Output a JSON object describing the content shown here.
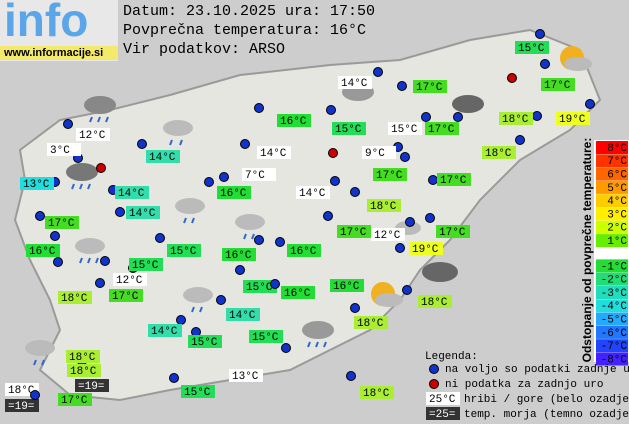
{
  "header": {
    "logo": "info",
    "site": "www.informacije.si",
    "date": "Datum: 23.10.2025 ura: 17:50",
    "average": "Povprečna temperatura: 16°C",
    "source": "Vir podatkov: ARSO"
  },
  "stations": [
    {
      "label": "15°C",
      "color": "#22dd55"
    },
    {
      "label": "17°C",
      "color": "#44dd22"
    },
    {
      "label": "17°C",
      "color": "#44dd22"
    },
    {
      "label": "14°C",
      "color": "#ffffff"
    },
    {
      "label": "15°C",
      "color": "#22dd55"
    },
    {
      "label": "16°C",
      "color": "#22dd33"
    },
    {
      "label": "15°C",
      "color": "#ffffff"
    },
    {
      "label": "17°C",
      "color": "#44dd22"
    },
    {
      "label": "18°C",
      "color": "#aaee33"
    },
    {
      "label": "19°C",
      "color": "#eeff22"
    },
    {
      "label": "12°C",
      "color": "#ffffff"
    },
    {
      "label": "3°C",
      "color": "#ffffff"
    },
    {
      "label": "14°C",
      "color": "#33ddaa"
    },
    {
      "label": "14°C",
      "color": "#ffffff"
    },
    {
      "label": "9°C",
      "color": "#ffffff"
    },
    {
      "label": "18°C",
      "color": "#aaee33"
    },
    {
      "label": "13°C",
      "color": "#22dddd"
    },
    {
      "label": "7°C",
      "color": "#ffffff"
    },
    {
      "label": "17°C",
      "color": "#44dd22"
    },
    {
      "label": "17°C",
      "color": "#44dd22"
    },
    {
      "label": "14°C",
      "color": "#33ddaa"
    },
    {
      "label": "16°C",
      "color": "#22dd33"
    },
    {
      "label": "14°C",
      "color": "#ffffff"
    },
    {
      "label": "18°C",
      "color": "#aaee33"
    },
    {
      "label": "14°C",
      "color": "#33ddaa"
    },
    {
      "label": "17°C",
      "color": "#44dd22"
    },
    {
      "label": "17°C",
      "color": "#44dd22"
    },
    {
      "label": "12°C",
      "color": "#ffffff"
    },
    {
      "label": "17°C",
      "color": "#44dd22"
    },
    {
      "label": "16°C",
      "color": "#22dd33"
    },
    {
      "label": "15°C",
      "color": "#22dd55"
    },
    {
      "label": "16°C",
      "color": "#22dd33"
    },
    {
      "label": "16°C",
      "color": "#22dd33"
    },
    {
      "label": "19°C",
      "color": "#eeff22"
    },
    {
      "label": "15°C",
      "color": "#22dd55"
    },
    {
      "label": "12°C",
      "color": "#ffffff"
    },
    {
      "label": "15°C",
      "color": "#22dd55"
    },
    {
      "label": "16°C",
      "color": "#22dd33"
    },
    {
      "label": "18°C",
      "color": "#aaee33"
    },
    {
      "label": "17°C",
      "color": "#44dd22"
    },
    {
      "label": "16°C",
      "color": "#22dd33"
    },
    {
      "label": "18°C",
      "color": "#aaee33"
    },
    {
      "label": "14°C",
      "color": "#33ddaa"
    },
    {
      "label": "18°C",
      "color": "#aaee33"
    },
    {
      "label": "14°C",
      "color": "#33ddaa"
    },
    {
      "label": "15°C",
      "color": "#22dd55"
    },
    {
      "label": "15°C",
      "color": "#22dd55"
    },
    {
      "label": "13°C",
      "color": "#ffffff"
    },
    {
      "label": "18°C",
      "color": "#aaee33"
    },
    {
      "label": "18°C",
      "color": "#aaee33"
    },
    {
      "label": "=19=",
      "color": "#333333"
    },
    {
      "label": "18°C",
      "color": "#ffffff"
    },
    {
      "label": "=19=",
      "color": "#333333"
    },
    {
      "label": "17°C",
      "color": "#44dd22"
    },
    {
      "label": "15°C",
      "color": "#22dd55"
    },
    {
      "label": "18°C",
      "color": "#aaee33"
    }
  ],
  "scale": {
    "title": "Odstopanje od povprečne temperature:",
    "steps": [
      {
        "label": "8°C",
        "color": "#ff0000"
      },
      {
        "label": "7°C",
        "color": "#ff3300"
      },
      {
        "label": "6°C",
        "color": "#ff6600"
      },
      {
        "label": "5°C",
        "color": "#ff9900"
      },
      {
        "label": "4°C",
        "color": "#ffcc00"
      },
      {
        "label": "3°C",
        "color": "#ffee00"
      },
      {
        "label": "2°C",
        "color": "#ccff00"
      },
      {
        "label": "1°C",
        "color": "#66ee00"
      },
      {
        "label": "-1°C",
        "color": "#22dd33"
      },
      {
        "label": "-2°C",
        "color": "#22dd77"
      },
      {
        "label": "-3°C",
        "color": "#22ddbb"
      },
      {
        "label": "-4°C",
        "color": "#22dddd"
      },
      {
        "label": "-5°C",
        "color": "#22aaff"
      },
      {
        "label": "-6°C",
        "color": "#2277ff"
      },
      {
        "label": "-7°C",
        "color": "#2244ff"
      },
      {
        "label": "-8°C",
        "color": "#4422ff"
      }
    ]
  },
  "legend": {
    "title": "Legenda:",
    "available": "na voljo so podatki zadnje ure",
    "missing": "ni podatka za zadnjo uro",
    "mountain_sample": "25°C",
    "mountain": "hribi / gore (belo ozadje)",
    "sea_sample": "=25=",
    "sea": "temp. morja (temno ozadje)"
  }
}
